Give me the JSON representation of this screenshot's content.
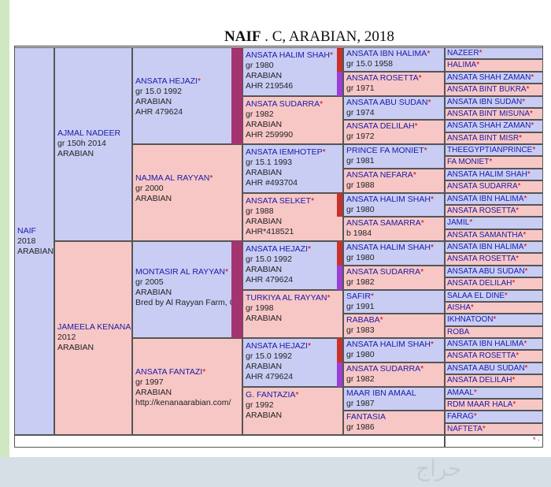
{
  "title": {
    "name": "NAIF",
    "rest": " . C, ARABIAN, 2018"
  },
  "watermark": "حراج",
  "subject": {
    "name": "NAIF",
    "lines": [
      "2018",
      "ARABIAN"
    ]
  },
  "gen1": [
    {
      "name": "AJMAL NADEER",
      "star": false,
      "lines": [
        "gr 150h 2014",
        "ARABIAN"
      ]
    },
    {
      "name": "JAMEELA KENANA",
      "star": false,
      "lines": [
        "2012",
        "ARABIAN"
      ]
    }
  ],
  "gen2": [
    {
      "name": "ANSATA HEJAZI",
      "star": true,
      "lines": [
        "gr 15.0 1992",
        "ARABIAN",
        "AHR 479624"
      ]
    },
    {
      "name": "NAJMA AL RAYYAN",
      "star": true,
      "lines": [
        "gr 2000",
        "ARABIAN"
      ]
    },
    {
      "name": "MONTASIR AL RAYYAN",
      "star": true,
      "lines": [
        "gr 2005",
        "ARABIAN",
        "Bred by Al Rayyan Farm, QA"
      ]
    },
    {
      "name": "ANSATA FANTAZI",
      "star": true,
      "lines": [
        "gr 1997",
        "ARABIAN",
        "http://kenanaarabian.com/"
      ]
    }
  ],
  "gen3": [
    {
      "name": "ANSATA HALIM SHAH",
      "star": true,
      "lines": [
        "gr 1980",
        "ARABIAN",
        "AHR 219546"
      ]
    },
    {
      "name": "ANSATA SUDARRA",
      "star": true,
      "lines": [
        "gr 1982",
        "ARABIAN",
        "AHR 259990"
      ]
    },
    {
      "name": "ANSATA IEMHOTEP",
      "star": true,
      "lines": [
        "gr 15.1 1993",
        "ARABIAN",
        "AHR #493704"
      ]
    },
    {
      "name": "ANSATA SELKET",
      "star": true,
      "lines": [
        "gr 1988",
        "ARABIAN",
        "AHR*418521"
      ]
    },
    {
      "name": "ANSATA HEJAZI",
      "star": true,
      "lines": [
        "gr 15.0 1992",
        "ARABIAN",
        "AHR 479624"
      ]
    },
    {
      "name": "TURKIYA AL RAYYAN",
      "star": true,
      "lines": [
        "gr 1998",
        "ARABIAN"
      ]
    },
    {
      "name": "ANSATA HEJAZI",
      "star": true,
      "lines": [
        "gr 15.0 1992",
        "ARABIAN",
        "AHR 479624"
      ]
    },
    {
      "name": "G. FANTAZIA",
      "star": true,
      "lines": [
        "gr 1992",
        "ARABIAN"
      ]
    }
  ],
  "gen4": [
    {
      "name": "ANSATA IBN HALIMA",
      "star": true,
      "lines": [
        "gr 15.0 1958"
      ]
    },
    {
      "name": "ANSATA ROSETTA",
      "star": true,
      "lines": [
        "gr 1971"
      ]
    },
    {
      "name": "ANSATA ABU SUDAN",
      "star": true,
      "lines": [
        "gr 1974"
      ]
    },
    {
      "name": "ANSATA DELILAH",
      "star": true,
      "lines": [
        "gr 1972"
      ]
    },
    {
      "name": "PRINCE FA MONIET",
      "star": true,
      "lines": [
        "gr 1981"
      ]
    },
    {
      "name": "ANSATA NEFARA",
      "star": true,
      "lines": [
        "gr 1988"
      ]
    },
    {
      "name": "ANSATA HALIM SHAH",
      "star": true,
      "lines": [
        "gr 1980"
      ]
    },
    {
      "name": "ANSATA SAMARRA",
      "star": true,
      "lines": [
        "b 1984"
      ]
    },
    {
      "name": "ANSATA HALIM SHAH",
      "star": true,
      "lines": [
        "gr 1980"
      ]
    },
    {
      "name": "ANSATA SUDARRA",
      "star": true,
      "lines": [
        "gr 1982"
      ]
    },
    {
      "name": "SAFIR",
      "star": true,
      "lines": [
        "gr 1991"
      ]
    },
    {
      "name": "RABABA",
      "star": true,
      "lines": [
        "gr 1983"
      ]
    },
    {
      "name": "ANSATA HALIM SHAH",
      "star": true,
      "lines": [
        "gr 1980"
      ]
    },
    {
      "name": "ANSATA SUDARRA",
      "star": true,
      "lines": [
        "gr 1982"
      ]
    },
    {
      "name": "MAAR IBN AMAAL",
      "star": false,
      "lines": [
        "gr 1987"
      ]
    },
    {
      "name": "FANTASIA",
      "star": false,
      "lines": [
        "gr 1986"
      ]
    }
  ],
  "gen5": [
    {
      "name": "NAZEER",
      "star": true
    },
    {
      "name": "HALIMA",
      "star": true
    },
    {
      "name": "ANSATA SHAH ZAMAN",
      "star": true
    },
    {
      "name": "ANSATA BINT BUKRA",
      "star": true
    },
    {
      "name": "ANSATA IBN SUDAN",
      "star": true
    },
    {
      "name": "ANSATA BINT MISUNA",
      "star": true
    },
    {
      "name": "ANSATA SHAH ZAMAN",
      "star": true
    },
    {
      "name": "ANSATA BINT MISR",
      "star": true
    },
    {
      "name": "THEEGYPTIANPRINCE",
      "star": true
    },
    {
      "name": "FA MONIET",
      "star": true
    },
    {
      "name": "ANSATA HALIM SHAH",
      "star": true
    },
    {
      "name": "ANSATA SUDARRA",
      "star": true
    },
    {
      "name": "ANSATA IBN HALIMA",
      "star": true
    },
    {
      "name": "ANSATA ROSETTA",
      "star": true
    },
    {
      "name": "JAMIL",
      "star": true
    },
    {
      "name": "ANSATA SAMANTHA",
      "star": true
    },
    {
      "name": "ANSATA IBN HALIMA",
      "star": true
    },
    {
      "name": "ANSATA ROSETTA",
      "star": true
    },
    {
      "name": "ANSATA ABU SUDAN",
      "star": true
    },
    {
      "name": "ANSATA DELILAH",
      "star": true
    },
    {
      "name": "SALAA EL DINE",
      "star": true
    },
    {
      "name": "AISHA",
      "star": true
    },
    {
      "name": "IKHNATOON",
      "star": true
    },
    {
      "name": "ROBA",
      "star": false
    },
    {
      "name": "ANSATA IBN HALIMA",
      "star": true
    },
    {
      "name": "ANSATA ROSETTA",
      "star": true
    },
    {
      "name": "ANSATA ABU SUDAN",
      "star": true
    },
    {
      "name": "ANSATA DELILAH",
      "star": true
    },
    {
      "name": "AMAAL",
      "star": true
    },
    {
      "name": "RDM MAAR HALA",
      "star": true
    },
    {
      "name": "FARAG",
      "star": true
    },
    {
      "name": "NAFTETA",
      "star": true
    }
  ],
  "footer_star": "* ·",
  "colors": {
    "sire_bg": "#c9cdf4",
    "dam_bg": "#f7c7c6",
    "name_text": "#1a1aa6",
    "star": "#d40000",
    "bar_magenta": "#a4336f",
    "bar_red": "#c8322c",
    "bar_purple": "#9b3fd6"
  }
}
